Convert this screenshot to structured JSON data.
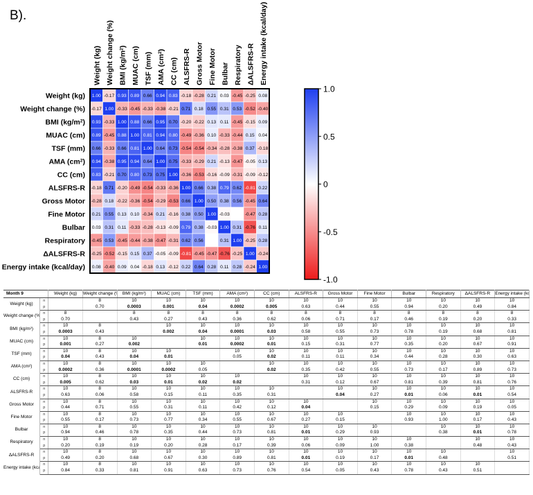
{
  "panel_label": "B).",
  "chart_data": {
    "type": "heatmap",
    "title": "",
    "variables": [
      "Weight (kg)",
      "Weight change (%)",
      "BMI (kg/m²)",
      "MUAC (cm)",
      "TSF (mm)",
      "AMA (cm²)",
      "CC (cm)",
      "ALSFRS-R",
      "Gross Motor",
      "Fine Motor",
      "Bulbar",
      "Respiratory",
      "ΔALSFRS-R",
      "Energy intake (kcal/day)"
    ],
    "column_labels": [
      "Weight (kg)",
      "Weight change (%)",
      "BMI (kg/m²)",
      "MUAC (cm)",
      "TSF (mm)",
      "AMA (cm²)",
      "CC (cm)",
      "ALSFRS-R",
      "Gross Motor",
      "Fine Motor",
      "Bulbar",
      "Respiratory",
      "ΔALSFRS-R",
      "Energy intake (kcal/day)"
    ],
    "values": [
      [
        1.0,
        -0.17,
        0.93,
        0.89,
        0.66,
        0.94,
        0.83,
        -0.18,
        -0.28,
        0.21,
        0.03,
        -0.45,
        -0.25,
        0.08
      ],
      [
        -0.17,
        1.0,
        -0.33,
        -0.45,
        -0.33,
        -0.38,
        -0.21,
        0.71,
        0.18,
        0.55,
        0.31,
        0.53,
        -0.52,
        -0.4
      ],
      [
        0.93,
        -0.33,
        1.0,
        0.88,
        0.66,
        0.95,
        0.7,
        -0.2,
        -0.22,
        0.13,
        0.11,
        -0.45,
        -0.15,
        0.09
      ],
      [
        0.89,
        -0.45,
        0.88,
        1.0,
        0.81,
        0.94,
        0.8,
        -0.49,
        -0.36,
        0.1,
        -0.33,
        -0.44,
        0.15,
        0.04
      ],
      [
        0.66,
        -0.33,
        0.66,
        0.81,
        1.0,
        0.64,
        0.73,
        -0.54,
        -0.54,
        -0.34,
        -0.28,
        -0.38,
        0.37,
        -0.18
      ],
      [
        0.94,
        -0.38,
        0.95,
        0.94,
        0.64,
        1.0,
        0.75,
        -0.33,
        -0.29,
        0.21,
        -0.13,
        -0.47,
        -0.05,
        0.13
      ],
      [
        0.83,
        -0.21,
        0.7,
        0.8,
        0.73,
        0.75,
        1.0,
        -0.36,
        -0.53,
        -0.16,
        -0.09,
        -0.31,
        -0.09,
        -0.12
      ],
      [
        -0.18,
        0.71,
        -0.2,
        -0.49,
        -0.54,
        -0.33,
        -0.36,
        1.0,
        0.66,
        0.38,
        0.79,
        0.62,
        -0.81,
        0.22
      ],
      [
        -0.28,
        0.18,
        -0.22,
        -0.36,
        -0.54,
        -0.29,
        -0.53,
        0.66,
        1.0,
        0.5,
        0.38,
        0.56,
        -0.45,
        0.64
      ],
      [
        0.21,
        0.55,
        0.13,
        0.1,
        -0.34,
        0.21,
        -0.16,
        0.38,
        0.5,
        1.0,
        -0.03,
        null,
        -0.47,
        0.28
      ],
      [
        0.03,
        0.31,
        0.11,
        -0.33,
        -0.28,
        -0.13,
        -0.09,
        0.79,
        0.38,
        -0.03,
        1.0,
        0.31,
        -0.76,
        0.11
      ],
      [
        -0.45,
        0.53,
        -0.45,
        -0.44,
        -0.38,
        -0.47,
        -0.31,
        0.62,
        0.56,
        null,
        0.31,
        1.0,
        -0.25,
        0.28
      ],
      [
        -0.25,
        -0.52,
        -0.15,
        0.15,
        0.37,
        -0.05,
        -0.09,
        -0.81,
        -0.45,
        -0.47,
        -0.76,
        -0.25,
        1.0,
        -0.24
      ],
      [
        0.08,
        -0.4,
        0.09,
        0.04,
        -0.18,
        0.13,
        -0.12,
        0.22,
        0.64,
        0.28,
        0.11,
        0.28,
        -0.24,
        1.0
      ]
    ],
    "colorbar": {
      "range": [
        -1.0,
        1.0
      ],
      "ticks": [
        "1.0",
        "0.5",
        "0",
        "-0.5",
        "-1.0"
      ],
      "tick_values": [
        1.0,
        0.5,
        0,
        -0.5,
        -1.0
      ],
      "colors": {
        "positive": "#1f3ff0",
        "zero": "#ffffff",
        "negative": "#ee1c1c"
      }
    }
  },
  "table": {
    "month_label": "Month 9",
    "headers": [
      "Weight (kg)",
      "Weight change (%)",
      "BMI (kg/m²)",
      "MUAC (cm)",
      "TSF (mm)",
      "AMA (cm²)",
      "CC (cm)",
      "ALSFRS-R",
      "Gross Motor",
      "Fine Motor",
      "Bulbar",
      "Respiratory",
      "ΔALSFRS-R",
      "Energy intake (kcal/day)"
    ],
    "rows": [
      {
        "label": "Weight (kg)",
        "n": [
          "",
          "8",
          "10",
          "10",
          "10",
          "10",
          "10",
          "10",
          "10",
          "10",
          "10",
          "10",
          "10",
          "10"
        ],
        "p": [
          "",
          "0.70",
          "0.0003",
          "0.001",
          "0.04",
          "0.0002",
          "0.005",
          "0.63",
          "0.44",
          "0.55",
          "0.94",
          "0.20",
          "0.49",
          "0.84"
        ],
        "bold": [
          2,
          3,
          4,
          5,
          6
        ]
      },
      {
        "label": "Weight change (%)",
        "n": [
          "8",
          "",
          "8",
          "8",
          "8",
          "8",
          "8",
          "8",
          "8",
          "8",
          "8",
          "8",
          "8",
          "8"
        ],
        "p": [
          "0.70",
          "",
          "0.43",
          "0.27",
          "0.43",
          "0.36",
          "0.62",
          "0.06",
          "0.71",
          "0.17",
          "0.46",
          "0.19",
          "0.20",
          "0.33"
        ],
        "bold": []
      },
      {
        "label": "BMI (kg/m²)",
        "n": [
          "10",
          "8",
          "",
          "10",
          "10",
          "10",
          "10",
          "10",
          "10",
          "10",
          "10",
          "10",
          "10",
          "10"
        ],
        "p": [
          "0.0003",
          "0.43",
          "",
          "0.002",
          "0.04",
          "0.0001",
          "0.03",
          "0.58",
          "0.55",
          "0.73",
          "0.78",
          "0.19",
          "0.68",
          "0.81"
        ],
        "bold": [
          0,
          3,
          4,
          5,
          6
        ]
      },
      {
        "label": "MUAC (cm)",
        "n": [
          "10",
          "8",
          "10",
          "",
          "10",
          "10",
          "10",
          "10",
          "10",
          "10",
          "10",
          "10",
          "10",
          "10"
        ],
        "p": [
          "0.001",
          "0.27",
          "0.002",
          "",
          "0.01",
          "0.0002",
          "0.01",
          "0.15",
          "0.31",
          "0.77",
          "0.35",
          "0.20",
          "0.67",
          "0.91"
        ],
        "bold": [
          0,
          2,
          4,
          5,
          6
        ]
      },
      {
        "label": "TSF (mm)",
        "n": [
          "10",
          "8",
          "10",
          "10",
          "",
          "10",
          "10",
          "10",
          "10",
          "10",
          "10",
          "10",
          "10",
          "10"
        ],
        "p": [
          "0.04",
          "0.43",
          "0.04",
          "0.01",
          "",
          "0.05",
          "0.02",
          "0.11",
          "0.11",
          "0.34",
          "0.44",
          "0.28",
          "0.30",
          "0.63"
        ],
        "bold": [
          0,
          2,
          3,
          6
        ]
      },
      {
        "label": "AMA (cm²)",
        "n": [
          "10",
          "8",
          "10",
          "10",
          "10",
          "",
          "10",
          "10",
          "10",
          "10",
          "10",
          "10",
          "10",
          "10"
        ],
        "p": [
          "0.0002",
          "0.36",
          "0.0001",
          "0.0002",
          "0.05",
          "",
          "0.02",
          "0.35",
          "0.42",
          "0.55",
          "0.73",
          "0.17",
          "0.89",
          "0.73"
        ],
        "bold": [
          0,
          2,
          3,
          6
        ]
      },
      {
        "label": "CC (cm)",
        "n": [
          "10",
          "8",
          "10",
          "10",
          "10",
          "10",
          "",
          "10",
          "10",
          "10",
          "10",
          "10",
          "10",
          "10"
        ],
        "p": [
          "0.005",
          "0.62",
          "0.03",
          "0.01",
          "0.02",
          "0.02",
          "",
          "0.31",
          "0.12",
          "0.67",
          "0.81",
          "0.39",
          "0.81",
          "0.76"
        ],
        "bold": [
          0,
          2,
          3,
          4,
          5
        ]
      },
      {
        "label": "ALSFRS-R",
        "n": [
          "10",
          "8",
          "10",
          "10",
          "10",
          "10",
          "10",
          "",
          "10",
          "10",
          "10",
          "10",
          "10",
          "10"
        ],
        "p": [
          "0.63",
          "0.06",
          "0.58",
          "0.15",
          "0.11",
          "0.35",
          "0.31",
          "",
          "0.04",
          "0.27",
          "0.01",
          "0.06",
          "0.01",
          "0.54"
        ],
        "bold": [
          8,
          10,
          12
        ]
      },
      {
        "label": "Gross Motor",
        "n": [
          "10",
          "8",
          "10",
          "10",
          "10",
          "10",
          "10",
          "10",
          "",
          "10",
          "10",
          "10",
          "10",
          "10"
        ],
        "p": [
          "0.44",
          "0.71",
          "0.55",
          "0.31",
          "0.11",
          "0.42",
          "0.12",
          "0.04",
          "",
          "0.15",
          "0.29",
          "0.09",
          "0.19",
          "0.05"
        ],
        "bold": [
          7
        ]
      },
      {
        "label": "Fine Motor",
        "n": [
          "10",
          "8",
          "10",
          "10",
          "10",
          "10",
          "10",
          "10",
          "10",
          "",
          "10",
          "10",
          "10",
          "10"
        ],
        "p": [
          "0.55",
          "0.17",
          "0.73",
          "0.77",
          "0.34",
          "0.55",
          "0.67",
          "0.27",
          "0.15",
          "",
          "0.93",
          "1.00",
          "0.17",
          "0.43"
        ],
        "bold": []
      },
      {
        "label": "Bulbar",
        "n": [
          "10",
          "8",
          "10",
          "10",
          "10",
          "10",
          "10",
          "10",
          "10",
          "10",
          "",
          "10",
          "10",
          "10"
        ],
        "p": [
          "0.94",
          "0.46",
          "0.78",
          "0.35",
          "0.44",
          "0.73",
          "0.81",
          "0.01",
          "0.29",
          "0.93",
          "",
          "0.38",
          "0.01",
          "0.78"
        ],
        "bold": [
          7,
          12
        ]
      },
      {
        "label": "Respiratory",
        "n": [
          "10",
          "8",
          "10",
          "10",
          "10",
          "10",
          "10",
          "10",
          "10",
          "10",
          "10",
          "",
          "10",
          "10"
        ],
        "p": [
          "0.20",
          "0.19",
          "0.19",
          "0.20",
          "0.28",
          "0.17",
          "0.39",
          "0.06",
          "0.09",
          "1.00",
          "0.38",
          "",
          "0.48",
          "0.43"
        ],
        "bold": []
      },
      {
        "label": "ΔALSFRS-R",
        "n": [
          "10",
          "8",
          "10",
          "10",
          "10",
          "10",
          "10",
          "10",
          "10",
          "10",
          "10",
          "10",
          "",
          "10"
        ],
        "p": [
          "0.49",
          "0.20",
          "0.68",
          "0.67",
          "0.30",
          "0.89",
          "0.81",
          "0.01",
          "0.19",
          "0.17",
          "0.01",
          "0.48",
          "",
          "0.51"
        ],
        "bold": [
          7,
          10
        ]
      },
      {
        "label": "Energy intake (kcal/day)",
        "n": [
          "10",
          "8",
          "10",
          "10",
          "10",
          "10",
          "10",
          "10",
          "10",
          "10",
          "10",
          "10",
          "10",
          ""
        ],
        "p": [
          "0.84",
          "0.33",
          "0.81",
          "0.91",
          "0.63",
          "0.73",
          "0.76",
          "0.54",
          "0.05",
          "0.43",
          "0.78",
          "0.43",
          "0.51",
          ""
        ],
        "bold": []
      }
    ]
  }
}
